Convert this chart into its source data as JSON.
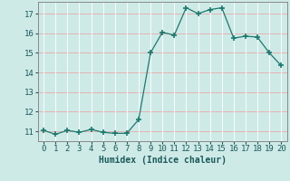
{
  "x": [
    0,
    1,
    2,
    3,
    4,
    5,
    6,
    7,
    8,
    9,
    10,
    11,
    12,
    13,
    14,
    15,
    16,
    17,
    18,
    19,
    20
  ],
  "y": [
    11.05,
    10.85,
    11.05,
    10.95,
    11.1,
    10.95,
    10.9,
    10.9,
    11.6,
    15.0,
    16.05,
    15.9,
    17.3,
    17.0,
    17.2,
    17.3,
    15.75,
    15.85,
    15.8,
    15.0,
    14.35
  ],
  "line_color": "#1a7a6e",
  "marker": "+",
  "marker_size": 4,
  "marker_lw": 1.2,
  "line_width": 0.9,
  "background_color": "#ceeae7",
  "grid_color": "#ffffff",
  "hline_color": "#e8aaaa",
  "xlabel": "Humidex (Indice chaleur)",
  "xlabel_fontsize": 7,
  "xlabel_fontweight": "bold",
  "tick_fontsize": 6.5,
  "xlim": [
    -0.5,
    20.5
  ],
  "ylim": [
    10.5,
    17.6
  ],
  "yticks": [
    11,
    12,
    13,
    14,
    15,
    16,
    17
  ],
  "xticks": [
    0,
    1,
    2,
    3,
    4,
    5,
    6,
    7,
    8,
    9,
    10,
    11,
    12,
    13,
    14,
    15,
    16,
    17,
    18,
    19,
    20
  ],
  "hline_values": [
    11,
    12,
    13,
    14,
    15,
    16,
    17
  ],
  "spine_color": "#888888"
}
